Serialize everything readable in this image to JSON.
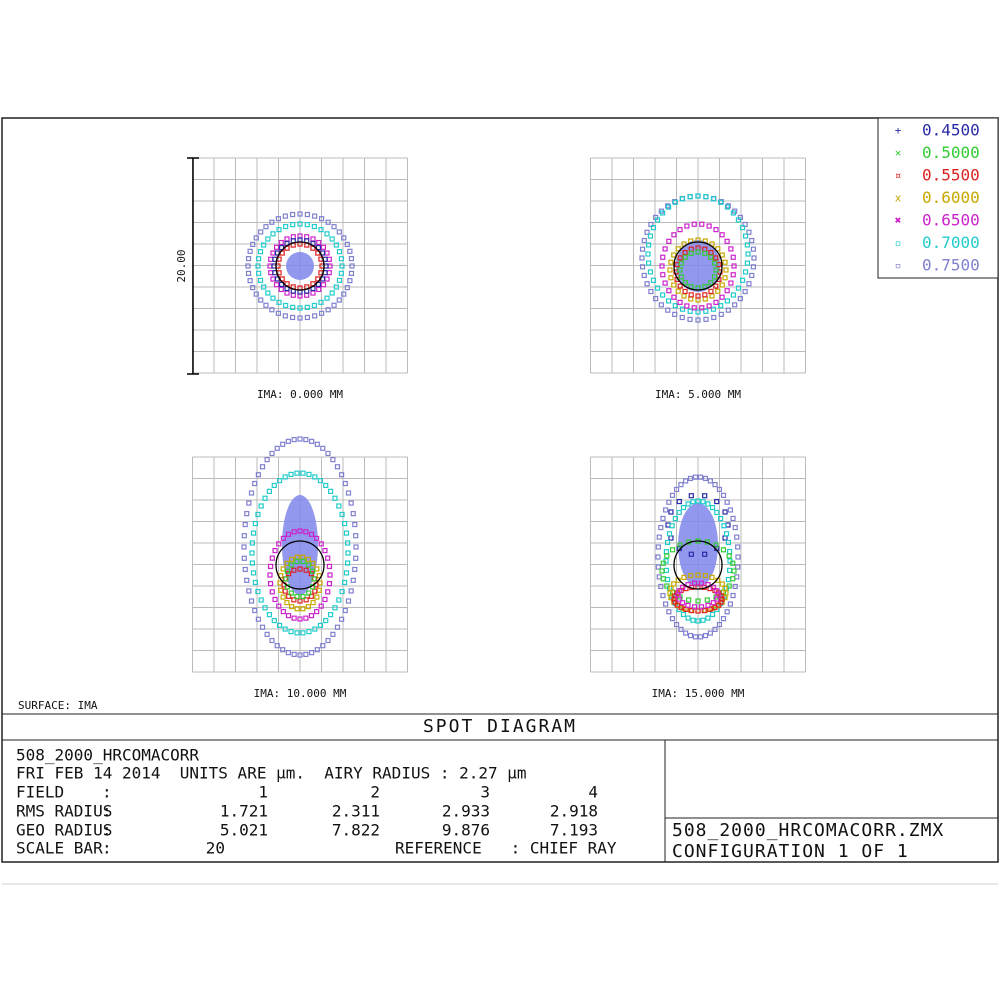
{
  "legend": [
    {
      "symbol": "+",
      "label": "0.4500",
      "color": "#2a2aa8"
    },
    {
      "symbol": "×",
      "label": "0.5000",
      "color": "#33cc33"
    },
    {
      "symbol": "¤",
      "label": "0.5500",
      "color": "#dd2222"
    },
    {
      "symbol": "x",
      "label": "0.6000",
      "color": "#c8a800"
    },
    {
      "symbol": "✖",
      "label": "0.6500",
      "color": "#cc22cc"
    },
    {
      "symbol": "▫",
      "label": "0.7000",
      "color": "#22cccc"
    },
    {
      "symbol": "▫",
      "label": "0.7500",
      "color": "#8080d0"
    }
  ],
  "plots": [
    {
      "label": "IMA: 0.000 MM"
    },
    {
      "label": "IMA: 5.000 MM"
    },
    {
      "label": "IMA: 10.000 MM"
    },
    {
      "label": "IMA: 15.000 MM"
    }
  ],
  "scale_label": "20.00",
  "surface": "SURFACE: IMA",
  "title": "SPOT DIAGRAM",
  "info": {
    "name": "508_2000_HRCOMACORR",
    "date_line": "FRI FEB 14 2014  UNITS ARE µm.  AIRY RADIUS : 2.27 µm",
    "rows": [
      [
        "FIELD",
        ":",
        "1",
        "2",
        "3",
        "4"
      ],
      [
        "RMS RADIUS",
        ":",
        "1.721",
        "2.311",
        "2.933",
        "2.918"
      ],
      [
        "GEO RADIUS",
        ":",
        "5.021",
        "7.822",
        "9.876",
        "7.193"
      ]
    ],
    "scale_bar": [
      "SCALE BAR",
      ":",
      "20"
    ],
    "reference": "REFERENCE   : CHIEF RAY"
  },
  "file": {
    "name": "508_2000_HRCOMACORR.ZMX",
    "config": "CONFIGURATION 1 OF 1"
  }
}
